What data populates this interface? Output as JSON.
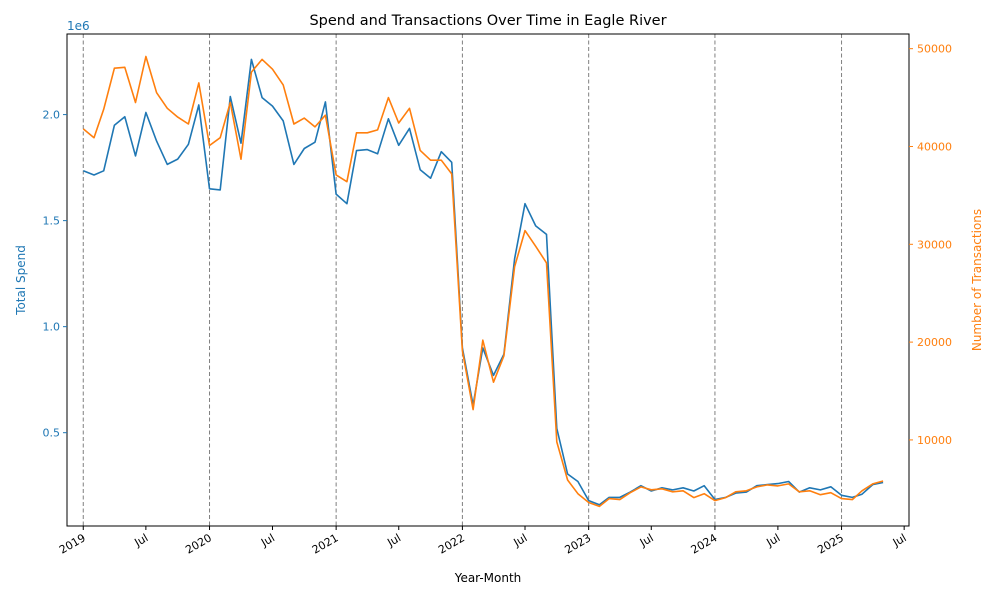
{
  "chart_data": {
    "type": "line",
    "title": "Spend and Transactions Over Time in Eagle River",
    "xlabel": "Year-Month",
    "ylabel_left": "Total Spend",
    "ylabel_right": "Number of Transactions",
    "left_axis_multiplier": "1e6",
    "left_color": "#1f77b4",
    "right_color": "#ff7f0e",
    "xlim": [
      "2018-11-15",
      "2025-07-15"
    ],
    "ylim_left": [
      60000,
      2380000
    ],
    "ylim_right": [
      1200,
      51500
    ],
    "left_ticks": [
      0.5,
      1.0,
      1.5,
      2.0
    ],
    "left_tick_labels": [
      "0.5",
      "1.0",
      "1.5",
      "2.0"
    ],
    "right_ticks": [
      10000,
      20000,
      30000,
      40000,
      50000
    ],
    "right_tick_labels": [
      "10000",
      "20000",
      "30000",
      "40000",
      "50000"
    ],
    "x_ticks": [
      {
        "date": "2019-01-01",
        "label": "2019"
      },
      {
        "date": "2019-07-01",
        "label": "Jul"
      },
      {
        "date": "2020-01-01",
        "label": "2020"
      },
      {
        "date": "2020-07-01",
        "label": "Jul"
      },
      {
        "date": "2021-01-01",
        "label": "2021"
      },
      {
        "date": "2021-07-01",
        "label": "Jul"
      },
      {
        "date": "2022-01-01",
        "label": "2022"
      },
      {
        "date": "2022-07-01",
        "label": "Jul"
      },
      {
        "date": "2023-01-01",
        "label": "2023"
      },
      {
        "date": "2023-07-01",
        "label": "Jul"
      },
      {
        "date": "2024-01-01",
        "label": "2024"
      },
      {
        "date": "2024-07-01",
        "label": "Jul"
      },
      {
        "date": "2025-01-01",
        "label": "2025"
      },
      {
        "date": "2025-07-01",
        "label": "Jul"
      }
    ],
    "year_lines": [
      "2019-01-01",
      "2020-01-01",
      "2021-01-01",
      "2022-01-01",
      "2023-01-01",
      "2024-01-01",
      "2025-01-01"
    ],
    "x": [
      "2019-01",
      "2019-02",
      "2019-03",
      "2019-04",
      "2019-05",
      "2019-06",
      "2019-07",
      "2019-08",
      "2019-09",
      "2019-10",
      "2019-11",
      "2019-12",
      "2020-01",
      "2020-02",
      "2020-03",
      "2020-04",
      "2020-05",
      "2020-06",
      "2020-07",
      "2020-08",
      "2020-09",
      "2020-10",
      "2020-11",
      "2020-12",
      "2021-01",
      "2021-02",
      "2021-03",
      "2021-04",
      "2021-05",
      "2021-06",
      "2021-07",
      "2021-08",
      "2021-09",
      "2021-10",
      "2021-11",
      "2021-12",
      "2022-01",
      "2022-02",
      "2022-03",
      "2022-04",
      "2022-05",
      "2022-06",
      "2022-07",
      "2022-08",
      "2022-09",
      "2022-10",
      "2022-11",
      "2022-12",
      "2023-01",
      "2023-02",
      "2023-03",
      "2023-04",
      "2023-05",
      "2023-06",
      "2023-07",
      "2023-08",
      "2023-09",
      "2023-10",
      "2023-11",
      "2023-12",
      "2024-01",
      "2024-02",
      "2024-03",
      "2024-04",
      "2024-05",
      "2024-06",
      "2024-07",
      "2024-08",
      "2024-09",
      "2024-10",
      "2024-11",
      "2024-12",
      "2025-01",
      "2025-02",
      "2025-03",
      "2025-04",
      "2025-05"
    ],
    "series": [
      {
        "axis": "left",
        "values": [
          1735000,
          1715000,
          1735000,
          1950000,
          1990000,
          1805000,
          2010000,
          1875000,
          1765000,
          1790000,
          1860000,
          2045000,
          1650000,
          1645000,
          2085000,
          1865000,
          2260000,
          2080000,
          2040000,
          1970000,
          1765000,
          1840000,
          1870000,
          2060000,
          1625000,
          1580000,
          1830000,
          1835000,
          1815000,
          1980000,
          1855000,
          1935000,
          1740000,
          1700000,
          1825000,
          1775000,
          900000,
          630000,
          900000,
          770000,
          870000,
          1320000,
          1580000,
          1475000,
          1435000,
          520000,
          305000,
          270000,
          180000,
          160000,
          195000,
          195000,
          220000,
          250000,
          225000,
          240000,
          230000,
          240000,
          225000,
          250000,
          185000,
          195000,
          215000,
          220000,
          250000,
          255000,
          260000,
          270000,
          220000,
          240000,
          230000,
          245000,
          205000,
          195000,
          210000,
          255000,
          265000
        ]
      },
      {
        "axis": "right",
        "values": [
          41800,
          40900,
          43800,
          48000,
          48100,
          44500,
          49200,
          45500,
          43900,
          43000,
          42300,
          46500,
          40100,
          40900,
          44500,
          38700,
          47600,
          48900,
          47900,
          46300,
          42300,
          42900,
          42000,
          43200,
          37100,
          36400,
          41400,
          41400,
          41700,
          45000,
          42400,
          43900,
          39600,
          38600,
          38600,
          37200,
          19100,
          13100,
          20200,
          15900,
          18600,
          27700,
          31400,
          29800,
          28100,
          9800,
          5900,
          4500,
          3600,
          3200,
          4000,
          3900,
          4600,
          5200,
          4900,
          5000,
          4700,
          4800,
          4100,
          4500,
          3800,
          4100,
          4700,
          4800,
          5200,
          5400,
          5300,
          5500,
          4700,
          4800,
          4400,
          4600,
          4000,
          3900,
          4800,
          5500,
          5800
        ]
      }
    ]
  }
}
